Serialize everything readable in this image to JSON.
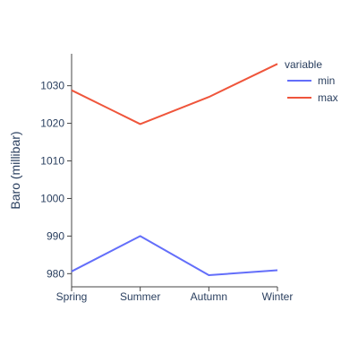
{
  "chart_data": {
    "type": "line",
    "title": "",
    "xlabel": "",
    "ylabel": "Baro (millibar)",
    "categories": [
      "Spring",
      "Summer",
      "Autumn",
      "Winter"
    ],
    "series": [
      {
        "name": "min",
        "values": [
          980.6,
          990.0,
          979.6,
          980.9
        ],
        "color": "#636efa"
      },
      {
        "name": "max",
        "values": [
          1028.8,
          1019.8,
          1027.0,
          1035.8
        ],
        "color": "#ef553b"
      }
    ],
    "ylim": [
      976.5,
      1038.5
    ],
    "yticks": [
      980,
      990,
      1000,
      1010,
      1020,
      1030
    ],
    "legend": {
      "title": "variable",
      "position": "top-right"
    },
    "grid": false,
    "axis_color": "#444444"
  }
}
